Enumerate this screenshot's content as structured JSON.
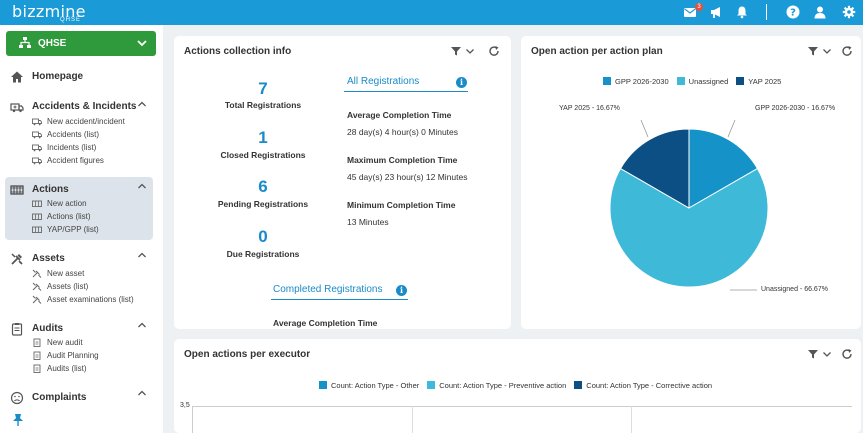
{
  "header": {
    "logo_text": "bizzmine",
    "logo_sub": "QHSE",
    "notification_count": "3"
  },
  "sidebar": {
    "module_label": "QHSE",
    "homepage": "Homepage",
    "sections": [
      {
        "label": "Accidents & Incidents",
        "items": [
          "New accident/incident",
          "Accidents (list)",
          "Incidents (list)",
          "Accident figures"
        ]
      },
      {
        "label": "Actions",
        "items": [
          "New action",
          "Actions (list)",
          "YAP/GPP (list)"
        ]
      },
      {
        "label": "Assets",
        "items": [
          "New asset",
          "Assets (list)",
          "Asset examinations (list)"
        ]
      },
      {
        "label": "Audits",
        "items": [
          "New audit",
          "Audit Planning",
          "Audits (list)"
        ]
      },
      {
        "label": "Complaints",
        "items": []
      }
    ]
  },
  "card1": {
    "title": "Actions collection info",
    "stats": [
      {
        "value": "7",
        "label": "Total Registrations"
      },
      {
        "value": "1",
        "label": "Closed Registrations"
      },
      {
        "value": "6",
        "label": "Pending Registrations"
      },
      {
        "value": "0",
        "label": "Due Registrations"
      }
    ],
    "all_heading": "All Registrations",
    "completed_heading": "Completed Registrations",
    "avg_label": "Average Completion Time",
    "avg_value": "28 day(s) 4 hour(s) 0 Minutes",
    "max_label": "Maximum Completion Time",
    "max_value": "45 day(s) 23 hour(s) 12 Minutes",
    "min_label": "Minimum Completion Time",
    "min_value": "13 Minutes",
    "completed_avg_label": "Average Completion Time"
  },
  "card2": {
    "title": "Open action per action plan"
  },
  "card3": {
    "title": "Open actions per executor"
  },
  "chart_data": [
    {
      "type": "pie",
      "title": "Open action per action plan",
      "legend": "top",
      "slices": [
        {
          "name": "GPP 2026-2030",
          "value": 16.67,
          "label": "GPP 2026-2030 - 16.67%",
          "color": "#1592c8"
        },
        {
          "name": "Unassigned",
          "value": 66.67,
          "label": "Unassigned - 66.67%",
          "color": "#3fb9d8"
        },
        {
          "name": "YAP 2025",
          "value": 16.67,
          "label": "YAP 2025 - 16.67%",
          "color": "#0b4f85"
        }
      ]
    },
    {
      "type": "bar",
      "title": "Open actions per executor",
      "legend": "top",
      "series": [
        {
          "name": "Count: Action Type - Other",
          "color": "#1592c8"
        },
        {
          "name": "Count: Action Type - Preventive action",
          "color": "#3fb9d8"
        },
        {
          "name": "Count: Action Type - Corrective action",
          "color": "#0b4f85"
        }
      ],
      "y_ticks": [
        "3,5"
      ]
    }
  ]
}
